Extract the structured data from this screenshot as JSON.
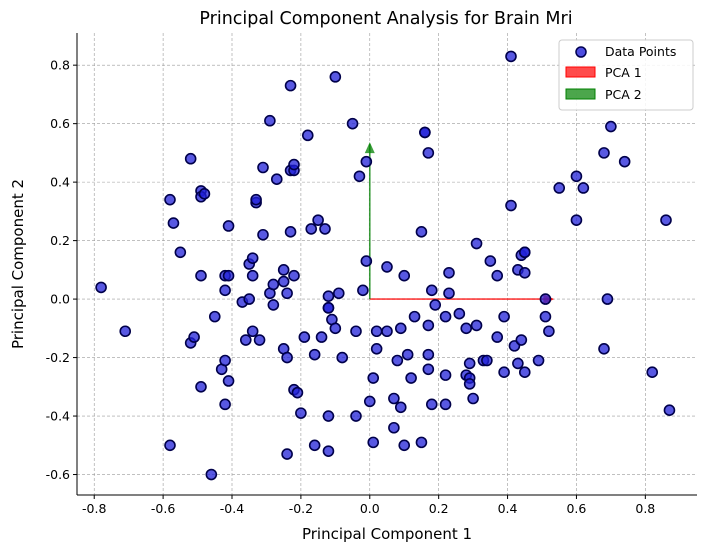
{
  "chart_data": {
    "type": "scatter",
    "title": "Principal Component Analysis for Brain Mri",
    "xlabel": "Principal Component 1",
    "ylabel": "Principal Component 2",
    "xlim": [
      -0.85,
      0.95
    ],
    "ylim": [
      -0.67,
      0.91
    ],
    "xticks": [
      "-0.8",
      "-0.6",
      "-0.4",
      "-0.2",
      "0.0",
      "0.2",
      "0.4",
      "0.6",
      "0.8"
    ],
    "xtick_values": [
      -0.8,
      -0.6,
      -0.4,
      -0.2,
      0.0,
      0.2,
      0.4,
      0.6,
      0.8
    ],
    "yticks": [
      "-0.6",
      "-0.4",
      "-0.2",
      "0.0",
      "0.2",
      "0.4",
      "0.6",
      "0.8"
    ],
    "ytick_values": [
      -0.6,
      -0.4,
      -0.2,
      0.0,
      0.2,
      0.4,
      0.6,
      0.8
    ],
    "grid": true,
    "legend_position": "top-right",
    "legend": [
      {
        "label": "Data Points",
        "kind": "marker",
        "color": "#0000cc"
      },
      {
        "label": "PCA 1",
        "kind": "patch",
        "color": "#ff0000"
      },
      {
        "label": "PCA 2",
        "kind": "patch",
        "color": "#008000"
      }
    ],
    "points_color": "#2020d8",
    "points": [
      [
        -0.78,
        0.04
      ],
      [
        -0.71,
        -0.11
      ],
      [
        -0.58,
        -0.5
      ],
      [
        -0.58,
        0.34
      ],
      [
        -0.57,
        0.26
      ],
      [
        -0.55,
        0.16
      ],
      [
        -0.52,
        0.48
      ],
      [
        -0.52,
        -0.15
      ],
      [
        -0.51,
        -0.13
      ],
      [
        -0.49,
        0.37
      ],
      [
        -0.49,
        0.35
      ],
      [
        -0.48,
        0.36
      ],
      [
        -0.49,
        0.08
      ],
      [
        -0.49,
        -0.3
      ],
      [
        -0.45,
        -0.06
      ],
      [
        -0.46,
        -0.6
      ],
      [
        -0.43,
        -0.24
      ],
      [
        -0.42,
        0.08
      ],
      [
        -0.42,
        0.03
      ],
      [
        -0.41,
        0.08
      ],
      [
        -0.42,
        -0.21
      ],
      [
        -0.42,
        -0.36
      ],
      [
        -0.41,
        -0.28
      ],
      [
        -0.41,
        0.25
      ],
      [
        -0.37,
        -0.01
      ],
      [
        -0.36,
        -0.14
      ],
      [
        -0.35,
        0.12
      ],
      [
        -0.34,
        0.14
      ],
      [
        -0.34,
        0.08
      ],
      [
        -0.35,
        0.0
      ],
      [
        -0.33,
        0.33
      ],
      [
        -0.33,
        0.34
      ],
      [
        -0.34,
        -0.11
      ],
      [
        -0.32,
        -0.14
      ],
      [
        -0.31,
        0.45
      ],
      [
        -0.31,
        0.22
      ],
      [
        -0.29,
        0.61
      ],
      [
        -0.29,
        0.02
      ],
      [
        -0.28,
        0.05
      ],
      [
        -0.28,
        -0.02
      ],
      [
        -0.27,
        0.41
      ],
      [
        -0.25,
        0.1
      ],
      [
        -0.25,
        0.06
      ],
      [
        -0.25,
        -0.17
      ],
      [
        -0.24,
        0.02
      ],
      [
        -0.24,
        -0.2
      ],
      [
        -0.24,
        -0.53
      ],
      [
        -0.23,
        0.73
      ],
      [
        -0.23,
        0.23
      ],
      [
        -0.23,
        0.44
      ],
      [
        -0.22,
        0.44
      ],
      [
        -0.22,
        0.46
      ],
      [
        -0.22,
        0.08
      ],
      [
        -0.22,
        -0.31
      ],
      [
        -0.21,
        -0.32
      ],
      [
        -0.2,
        -0.39
      ],
      [
        -0.19,
        -0.13
      ],
      [
        -0.18,
        0.56
      ],
      [
        -0.17,
        0.24
      ],
      [
        -0.16,
        -0.19
      ],
      [
        -0.16,
        -0.5
      ],
      [
        -0.15,
        0.27
      ],
      [
        -0.14,
        -0.13
      ],
      [
        -0.13,
        0.24
      ],
      [
        -0.12,
        0.01
      ],
      [
        -0.12,
        -0.03
      ],
      [
        -0.12,
        -0.03
      ],
      [
        -0.12,
        -0.4
      ],
      [
        -0.12,
        -0.52
      ],
      [
        -0.11,
        -0.07
      ],
      [
        -0.1,
        0.76
      ],
      [
        -0.1,
        -0.1
      ],
      [
        -0.09,
        0.02
      ],
      [
        -0.08,
        -0.2
      ],
      [
        -0.05,
        0.6
      ],
      [
        -0.04,
        -0.4
      ],
      [
        -0.04,
        -0.11
      ],
      [
        -0.03,
        0.42
      ],
      [
        -0.02,
        0.03
      ],
      [
        -0.01,
        0.47
      ],
      [
        -0.01,
        0.13
      ],
      [
        0.0,
        -0.35
      ],
      [
        0.01,
        -0.27
      ],
      [
        0.01,
        -0.49
      ],
      [
        0.02,
        -0.11
      ],
      [
        0.02,
        -0.17
      ],
      [
        0.05,
        0.11
      ],
      [
        0.05,
        -0.11
      ],
      [
        0.07,
        -0.34
      ],
      [
        0.07,
        -0.44
      ],
      [
        0.08,
        -0.21
      ],
      [
        0.09,
        -0.37
      ],
      [
        0.09,
        -0.1
      ],
      [
        0.1,
        0.08
      ],
      [
        0.1,
        -0.5
      ],
      [
        0.11,
        -0.19
      ],
      [
        0.12,
        -0.27
      ],
      [
        0.13,
        -0.06
      ],
      [
        0.15,
        -0.49
      ],
      [
        0.16,
        0.57
      ],
      [
        0.16,
        0.57
      ],
      [
        0.15,
        0.23
      ],
      [
        0.17,
        0.5
      ],
      [
        0.17,
        -0.09
      ],
      [
        0.17,
        -0.24
      ],
      [
        0.17,
        -0.19
      ],
      [
        0.18,
        -0.36
      ],
      [
        0.18,
        0.03
      ],
      [
        0.19,
        -0.02
      ],
      [
        0.22,
        -0.06
      ],
      [
        0.22,
        -0.26
      ],
      [
        0.22,
        -0.36
      ],
      [
        0.23,
        0.09
      ],
      [
        0.23,
        0.02
      ],
      [
        0.26,
        -0.05
      ],
      [
        0.28,
        -0.26
      ],
      [
        0.28,
        -0.1
      ],
      [
        0.29,
        -0.27
      ],
      [
        0.29,
        -0.22
      ],
      [
        0.29,
        -0.29
      ],
      [
        0.3,
        -0.34
      ],
      [
        0.31,
        -0.09
      ],
      [
        0.31,
        0.19
      ],
      [
        0.33,
        -0.21
      ],
      [
        0.34,
        -0.21
      ],
      [
        0.35,
        0.13
      ],
      [
        0.37,
        0.08
      ],
      [
        0.37,
        -0.13
      ],
      [
        0.39,
        -0.06
      ],
      [
        0.39,
        -0.25
      ],
      [
        0.41,
        0.83
      ],
      [
        0.41,
        0.32
      ],
      [
        0.42,
        -0.16
      ],
      [
        0.43,
        0.1
      ],
      [
        0.43,
        -0.22
      ],
      [
        0.44,
        0.15
      ],
      [
        0.44,
        -0.14
      ],
      [
        0.45,
        0.16
      ],
      [
        0.45,
        0.16
      ],
      [
        0.45,
        -0.25
      ],
      [
        0.45,
        0.09
      ],
      [
        0.49,
        -0.21
      ],
      [
        0.51,
        0.0
      ],
      [
        0.51,
        -0.06
      ],
      [
        0.52,
        -0.11
      ],
      [
        0.55,
        0.38
      ],
      [
        0.6,
        0.42
      ],
      [
        0.6,
        0.27
      ],
      [
        0.62,
        0.38
      ],
      [
        0.68,
        0.5
      ],
      [
        0.68,
        -0.17
      ],
      [
        0.69,
        0.0
      ],
      [
        0.7,
        0.59
      ],
      [
        0.74,
        0.47
      ],
      [
        0.82,
        -0.25
      ],
      [
        0.86,
        0.27
      ],
      [
        0.87,
        -0.38
      ]
    ],
    "vectors": [
      {
        "name": "PCA 1",
        "from": [
          0.0,
          0.0
        ],
        "to": [
          0.53,
          0.0
        ],
        "color": "#ff0000"
      },
      {
        "name": "PCA 2",
        "from": [
          0.0,
          0.0
        ],
        "to": [
          0.0,
          0.53
        ],
        "color": "#008000"
      }
    ]
  }
}
